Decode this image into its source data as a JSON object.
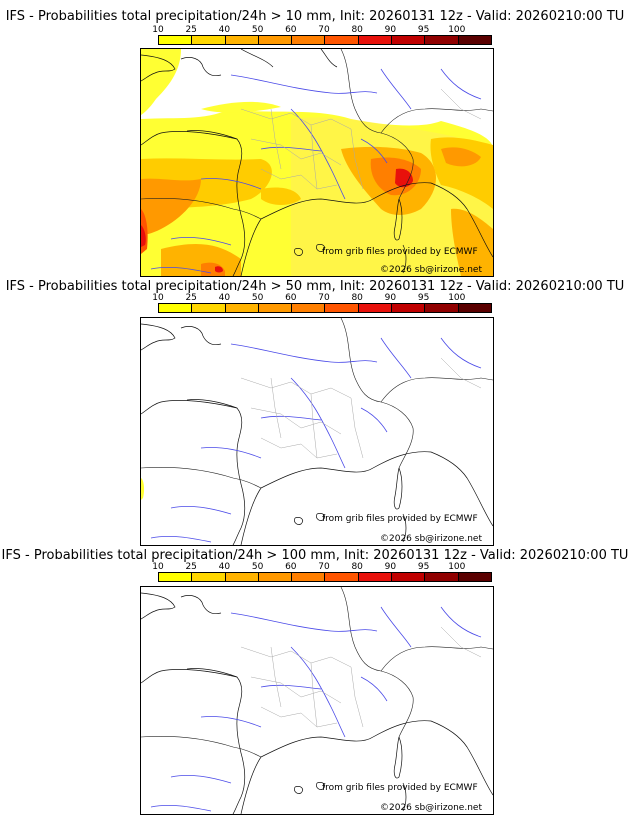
{
  "legend": {
    "ticks": [
      "10",
      "25",
      "40",
      "50",
      "60",
      "70",
      "80",
      "90",
      "95",
      "100"
    ],
    "colors": [
      "#ffff00",
      "#ffd700",
      "#ffb300",
      "#ff9900",
      "#ff7f00",
      "#ff5500",
      "#e8110b",
      "#c00000",
      "#900000",
      "#5a0000"
    ]
  },
  "panels": [
    {
      "title": "IFS - Probabilities total precipitation/24h > 10 mm, Init: 20260131 12z - Valid: 20260210:00 TU",
      "credit_source": "from grib files provided by ECMWF",
      "credit_copyright": "©2026 sb@irizone.net",
      "shading": "widespread"
    },
    {
      "title": "IFS - Probabilities total precipitation/24h > 50 mm, Init: 20260131 12z - Valid: 20260210:00 TU",
      "credit_source": "from grib files provided by ECMWF",
      "credit_copyright": "©2026 sb@irizone.net",
      "shading": "trace"
    },
    {
      "title": "IFS - Probabilities total precipitation/24h > 100 mm, Init: 20260131 12z - Valid: 20260210:00 TU",
      "credit_source": "from grib files provided by ECMWF",
      "credit_copyright": "©2026 sb@irizone.net",
      "shading": "none"
    }
  ]
}
